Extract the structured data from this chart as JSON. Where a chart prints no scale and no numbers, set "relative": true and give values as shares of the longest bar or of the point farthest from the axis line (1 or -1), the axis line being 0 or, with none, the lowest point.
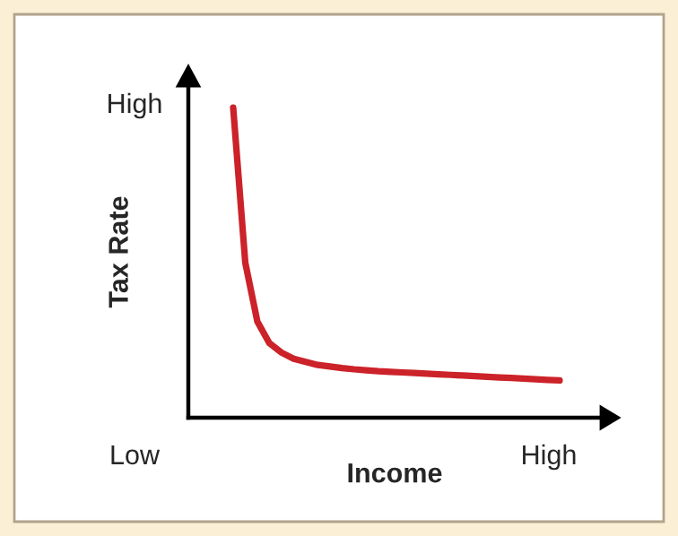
{
  "chart_data": {
    "type": "line",
    "relative": true,
    "xlabel": "Income",
    "ylabel": "Tax Rate",
    "annotations": [
      "Low",
      "High",
      "High"
    ],
    "categories": [
      null,
      null,
      null,
      null,
      null,
      null,
      null,
      null,
      null,
      null,
      null,
      null,
      null,
      null,
      null,
      null,
      null,
      null,
      null,
      null,
      null,
      null,
      null,
      null,
      null,
      null,
      null,
      null
    ],
    "series": [
      {
        "color": "#cc2229",
        "values": [
          1.0,
          0.5,
          0.31,
          0.24,
          0.21,
          0.19,
          0.18,
          0.17,
          0.165,
          0.16,
          0.156,
          0.153,
          0.15,
          0.148,
          0.146,
          0.144,
          0.142,
          0.14,
          0.138,
          0.136,
          0.134,
          0.132,
          0.13,
          0.128,
          0.126,
          0.124,
          0.122,
          0.12
        ]
      }
    ]
  }
}
